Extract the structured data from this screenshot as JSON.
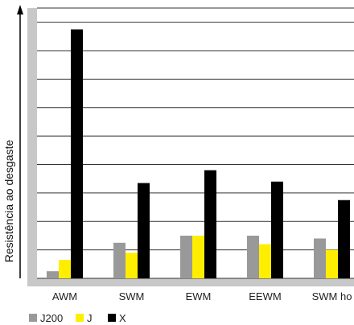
{
  "chart_data": {
    "type": "bar",
    "title": "",
    "xlabel": "",
    "ylabel": "Resistência ao desgaste",
    "categories": [
      "AWM",
      "SWM",
      "EWM",
      "EEWM",
      "SWM ho"
    ],
    "series": [
      {
        "name": "J200",
        "color": "#999999",
        "values": [
          0.25,
          1.25,
          1.5,
          1.5,
          1.4
        ]
      },
      {
        "name": "J",
        "color": "#ffee00",
        "values": [
          0.65,
          0.9,
          1.5,
          1.2,
          1.0
        ]
      },
      {
        "name": "X",
        "color": "#000000",
        "values": [
          8.75,
          3.35,
          3.8,
          3.4,
          2.75
        ]
      }
    ],
    "ylim": [
      0,
      9.5
    ],
    "grid": true,
    "legend_position": "bottom-left"
  }
}
